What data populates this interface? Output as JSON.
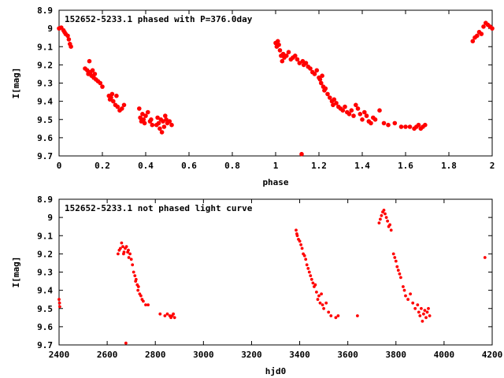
{
  "chart_data": [
    {
      "type": "scatter",
      "title": "152652-5233.1 phased with P=376.0day",
      "xlabel": "phase",
      "ylabel": "I[mag]",
      "xlim": [
        0,
        2
      ],
      "ylim": [
        9.7,
        8.9
      ],
      "y_inverted": true,
      "x_ticks": [
        "0",
        "0.2",
        "0.4",
        "0.6",
        "0.8",
        "1",
        "1.2",
        "1.4",
        "1.6",
        "1.8",
        "2"
      ],
      "y_ticks": [
        "8.9",
        "9",
        "9.1",
        "9.2",
        "9.3",
        "9.4",
        "9.5",
        "9.6",
        "9.7"
      ],
      "marker_color": "#ff0000",
      "series": [
        {
          "values": [
            [
              0.0,
              9.0
            ],
            [
              0.01,
              8.995
            ],
            [
              0.02,
              9.01
            ],
            [
              0.025,
              9.02
            ],
            [
              0.03,
              9.03
            ],
            [
              0.04,
              9.04
            ],
            [
              0.045,
              9.06
            ],
            [
              0.05,
              9.085
            ],
            [
              0.055,
              9.1
            ],
            [
              0.12,
              9.22
            ],
            [
              0.13,
              9.23
            ],
            [
              0.135,
              9.25
            ],
            [
              0.14,
              9.18
            ],
            [
              0.145,
              9.24
            ],
            [
              0.15,
              9.26
            ],
            [
              0.155,
              9.23
            ],
            [
              0.16,
              9.27
            ],
            [
              0.165,
              9.25
            ],
            [
              0.17,
              9.28
            ],
            [
              0.18,
              9.29
            ],
            [
              0.19,
              9.3
            ],
            [
              0.2,
              9.32
            ],
            [
              0.23,
              9.37
            ],
            [
              0.235,
              9.39
            ],
            [
              0.24,
              9.38
            ],
            [
              0.245,
              9.36
            ],
            [
              0.25,
              9.4
            ],
            [
              0.26,
              9.42
            ],
            [
              0.265,
              9.37
            ],
            [
              0.27,
              9.43
            ],
            [
              0.28,
              9.45
            ],
            [
              0.29,
              9.44
            ],
            [
              0.3,
              9.42
            ],
            [
              0.37,
              9.44
            ],
            [
              0.375,
              9.49
            ],
            [
              0.38,
              9.51
            ],
            [
              0.385,
              9.47
            ],
            [
              0.39,
              9.5
            ],
            [
              0.395,
              9.52
            ],
            [
              0.4,
              9.48
            ],
            [
              0.41,
              9.46
            ],
            [
              0.42,
              9.51
            ],
            [
              0.425,
              9.5
            ],
            [
              0.43,
              9.53
            ],
            [
              0.45,
              9.53
            ],
            [
              0.455,
              9.49
            ],
            [
              0.46,
              9.52
            ],
            [
              0.465,
              9.55
            ],
            [
              0.47,
              9.5
            ],
            [
              0.475,
              9.57
            ],
            [
              0.48,
              9.51
            ],
            [
              0.485,
              9.54
            ],
            [
              0.49,
              9.48
            ],
            [
              0.495,
              9.5
            ],
            [
              0.5,
              9.52
            ],
            [
              0.51,
              9.51
            ],
            [
              0.52,
              9.53
            ],
            [
              1.0,
              9.08
            ],
            [
              1.005,
              9.1
            ],
            [
              1.01,
              9.07
            ],
            [
              1.015,
              9.09
            ],
            [
              1.02,
              9.12
            ],
            [
              1.025,
              9.15
            ],
            [
              1.03,
              9.18
            ],
            [
              1.035,
              9.14
            ],
            [
              1.04,
              9.16
            ],
            [
              1.05,
              9.15
            ],
            [
              1.06,
              9.13
            ],
            [
              1.07,
              9.17
            ],
            [
              1.08,
              9.16
            ],
            [
              1.09,
              9.15
            ],
            [
              1.1,
              9.17
            ],
            [
              1.11,
              9.19
            ],
            [
              1.12,
              9.69
            ],
            [
              1.125,
              9.18
            ],
            [
              1.13,
              9.2
            ],
            [
              1.14,
              9.19
            ],
            [
              1.15,
              9.21
            ],
            [
              1.16,
              9.22
            ],
            [
              1.17,
              9.24
            ],
            [
              1.18,
              9.25
            ],
            [
              1.19,
              9.23
            ],
            [
              1.2,
              9.27
            ],
            [
              1.205,
              9.28
            ],
            [
              1.21,
              9.3
            ],
            [
              1.215,
              9.26
            ],
            [
              1.22,
              9.32
            ],
            [
              1.225,
              9.34
            ],
            [
              1.23,
              9.33
            ],
            [
              1.24,
              9.36
            ],
            [
              1.25,
              9.38
            ],
            [
              1.26,
              9.4
            ],
            [
              1.265,
              9.42
            ],
            [
              1.27,
              9.39
            ],
            [
              1.28,
              9.41
            ],
            [
              1.29,
              9.43
            ],
            [
              1.3,
              9.44
            ],
            [
              1.31,
              9.45
            ],
            [
              1.32,
              9.43
            ],
            [
              1.33,
              9.46
            ],
            [
              1.34,
              9.47
            ],
            [
              1.35,
              9.45
            ],
            [
              1.36,
              9.48
            ],
            [
              1.37,
              9.42
            ],
            [
              1.38,
              9.44
            ],
            [
              1.39,
              9.47
            ],
            [
              1.4,
              9.5
            ],
            [
              1.41,
              9.46
            ],
            [
              1.42,
              9.48
            ],
            [
              1.43,
              9.51
            ],
            [
              1.44,
              9.52
            ],
            [
              1.45,
              9.49
            ],
            [
              1.46,
              9.5
            ],
            [
              1.48,
              9.45
            ],
            [
              1.5,
              9.52
            ],
            [
              1.52,
              9.53
            ],
            [
              1.55,
              9.52
            ],
            [
              1.58,
              9.54
            ],
            [
              1.6,
              9.54
            ],
            [
              1.62,
              9.54
            ],
            [
              1.64,
              9.55
            ],
            [
              1.65,
              9.54
            ],
            [
              1.66,
              9.53
            ],
            [
              1.67,
              9.55
            ],
            [
              1.68,
              9.54
            ],
            [
              1.69,
              9.53
            ],
            [
              1.91,
              9.07
            ],
            [
              1.92,
              9.05
            ],
            [
              1.93,
              9.04
            ],
            [
              1.94,
              9.02
            ],
            [
              1.95,
              9.03
            ],
            [
              1.96,
              8.99
            ],
            [
              1.97,
              8.97
            ],
            [
              1.98,
              8.98
            ],
            [
              1.99,
              8.99
            ],
            [
              2.0,
              9.0
            ]
          ]
        }
      ]
    },
    {
      "type": "scatter",
      "title": "152652-5233.1 not phased light curve",
      "xlabel": "hjd0",
      "ylabel": "I[mag]",
      "xlim": [
        2400,
        4200
      ],
      "ylim": [
        9.7,
        8.9
      ],
      "y_inverted": true,
      "x_ticks": [
        "2400",
        "2600",
        "2800",
        "3000",
        "3200",
        "3400",
        "3600",
        "3800",
        "4000",
        "4200"
      ],
      "y_ticks": [
        "8.9",
        "9",
        "9.1",
        "9.2",
        "9.3",
        "9.4",
        "9.5",
        "9.6",
        "9.7"
      ],
      "marker_color": "#ff0000",
      "series": [
        {
          "values": [
            [
              2400,
              9.45
            ],
            [
              2402,
              9.47
            ],
            [
              2403,
              9.49
            ],
            [
              2645,
              9.2
            ],
            [
              2650,
              9.18
            ],
            [
              2655,
              9.17
            ],
            [
              2660,
              9.14
            ],
            [
              2665,
              9.16
            ],
            [
              2668,
              9.2
            ],
            [
              2670,
              9.19
            ],
            [
              2675,
              9.17
            ],
            [
              2678,
              9.69
            ],
            [
              2680,
              9.16
            ],
            [
              2685,
              9.19
            ],
            [
              2688,
              9.18
            ],
            [
              2690,
              9.22
            ],
            [
              2695,
              9.2
            ],
            [
              2700,
              9.23
            ],
            [
              2705,
              9.26
            ],
            [
              2710,
              9.3
            ],
            [
              2715,
              9.32
            ],
            [
              2718,
              9.35
            ],
            [
              2720,
              9.34
            ],
            [
              2725,
              9.37
            ],
            [
              2728,
              9.4
            ],
            [
              2730,
              9.38
            ],
            [
              2735,
              9.42
            ],
            [
              2740,
              9.43
            ],
            [
              2745,
              9.45
            ],
            [
              2750,
              9.46
            ],
            [
              2760,
              9.48
            ],
            [
              2770,
              9.48
            ],
            [
              2820,
              9.53
            ],
            [
              2840,
              9.54
            ],
            [
              2850,
              9.53
            ],
            [
              2860,
              9.54
            ],
            [
              2865,
              9.55
            ],
            [
              2870,
              9.54
            ],
            [
              2875,
              9.53
            ],
            [
              2880,
              9.55
            ],
            [
              3385,
              9.07
            ],
            [
              3388,
              9.09
            ],
            [
              3390,
              9.1
            ],
            [
              3395,
              9.12
            ],
            [
              3400,
              9.13
            ],
            [
              3405,
              9.15
            ],
            [
              3410,
              9.17
            ],
            [
              3415,
              9.2
            ],
            [
              3420,
              9.21
            ],
            [
              3425,
              9.23
            ],
            [
              3430,
              9.26
            ],
            [
              3435,
              9.28
            ],
            [
              3440,
              9.3
            ],
            [
              3445,
              9.32
            ],
            [
              3450,
              9.34
            ],
            [
              3455,
              9.36
            ],
            [
              3460,
              9.38
            ],
            [
              3465,
              9.37
            ],
            [
              3470,
              9.41
            ],
            [
              3475,
              9.45
            ],
            [
              3480,
              9.43
            ],
            [
              3485,
              9.47
            ],
            [
              3490,
              9.42
            ],
            [
              3495,
              9.48
            ],
            [
              3500,
              9.5
            ],
            [
              3510,
              9.47
            ],
            [
              3520,
              9.52
            ],
            [
              3530,
              9.54
            ],
            [
              3550,
              9.55
            ],
            [
              3560,
              9.54
            ],
            [
              3640,
              9.54
            ],
            [
              3730,
              9.03
            ],
            [
              3735,
              9.01
            ],
            [
              3740,
              8.99
            ],
            [
              3745,
              8.97
            ],
            [
              3750,
              8.96
            ],
            [
              3755,
              8.98
            ],
            [
              3760,
              9.0
            ],
            [
              3765,
              9.02
            ],
            [
              3770,
              9.05
            ],
            [
              3775,
              9.04
            ],
            [
              3780,
              9.07
            ],
            [
              3790,
              9.2
            ],
            [
              3795,
              9.22
            ],
            [
              3800,
              9.24
            ],
            [
              3805,
              9.27
            ],
            [
              3810,
              9.29
            ],
            [
              3815,
              9.31
            ],
            [
              3820,
              9.33
            ],
            [
              3830,
              9.38
            ],
            [
              3835,
              9.4
            ],
            [
              3840,
              9.43
            ],
            [
              3850,
              9.45
            ],
            [
              3860,
              9.42
            ],
            [
              3870,
              9.47
            ],
            [
              3880,
              9.5
            ],
            [
              3890,
              9.48
            ],
            [
              3895,
              9.52
            ],
            [
              3900,
              9.54
            ],
            [
              3905,
              9.5
            ],
            [
              3910,
              9.57
            ],
            [
              3915,
              9.53
            ],
            [
              3920,
              9.51
            ],
            [
              3925,
              9.55
            ],
            [
              3930,
              9.52
            ],
            [
              3935,
              9.5
            ],
            [
              3940,
              9.54
            ],
            [
              4170,
              9.22
            ]
          ]
        }
      ]
    }
  ]
}
